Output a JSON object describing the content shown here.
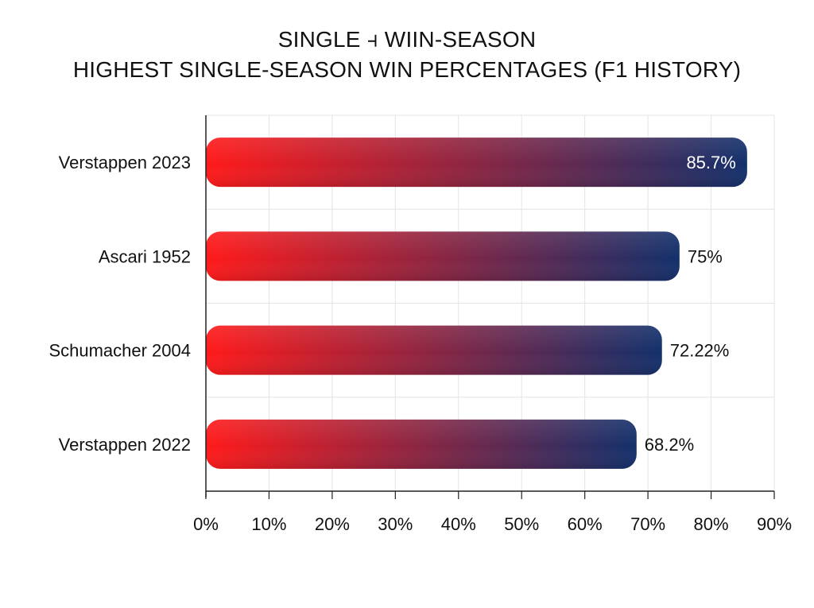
{
  "chart_data": {
    "type": "bar",
    "orientation": "horizontal",
    "title": "SINGLE ⫞ WIIN-SEASON",
    "subtitle": "HIGHEST SINGLE-SEASON WIN PERCENTAGES (F1 HISTORY)",
    "categories": [
      "Verstappen 2023",
      "Ascari 1952",
      "Schumacher 2004",
      "Verstappen 2022"
    ],
    "values": [
      85.7,
      75,
      72.22,
      68.2
    ],
    "value_labels": [
      "85.7%",
      "75%",
      "72.22%",
      "68.2%"
    ],
    "xlim": [
      0,
      90
    ],
    "x_ticks": [
      0,
      10,
      20,
      30,
      40,
      50,
      60,
      70,
      80,
      90
    ],
    "x_tick_labels": [
      "0%",
      "10%",
      "20%",
      "30%",
      "40%",
      "50%",
      "60%",
      "70%",
      "80%",
      "90%"
    ],
    "xlabel": "",
    "ylabel": "",
    "grid": true,
    "legend": "none",
    "bar_gradient": [
      "#ff1a1a",
      "#13306b"
    ]
  }
}
